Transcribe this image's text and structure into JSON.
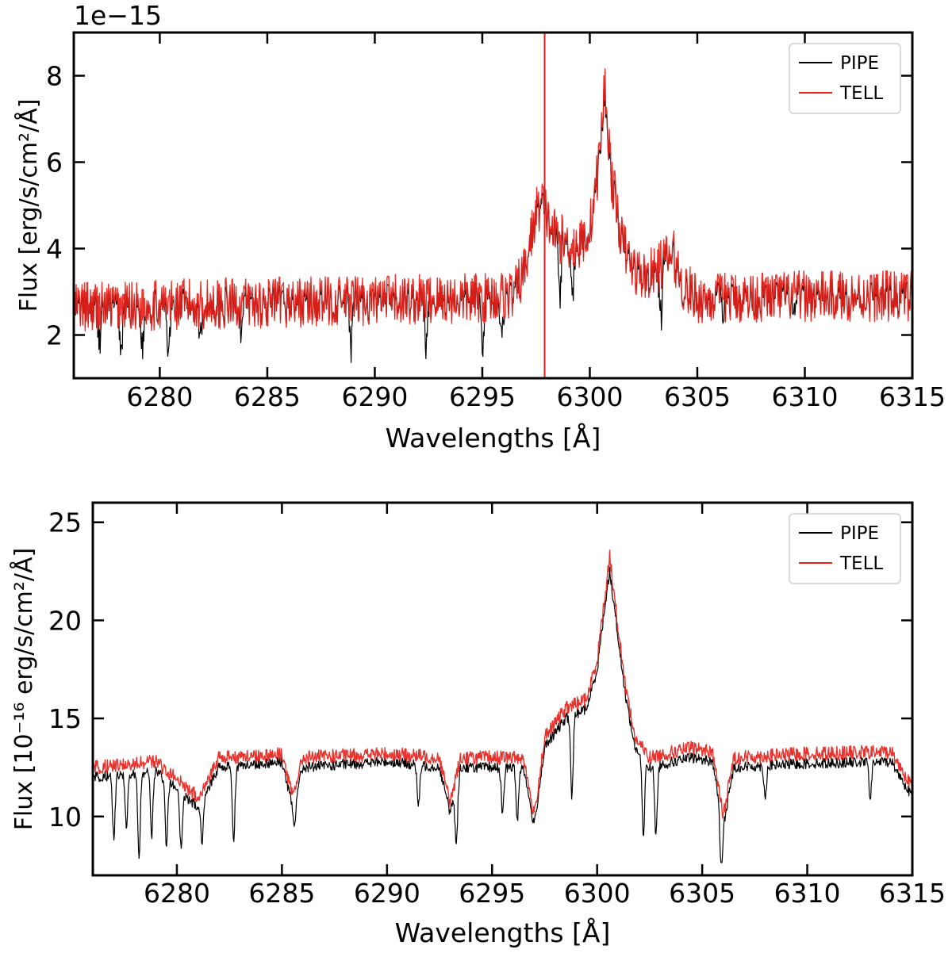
{
  "chart_data": [
    {
      "type": "line",
      "title": "",
      "offset_label": "1e−15",
      "xlabel": "Wavelengths [Å]",
      "ylabel": "Flux [erg/s/cm²/Å]",
      "xlim": [
        6276,
        6315
      ],
      "ylim": [
        1.0,
        9.0
      ],
      "xticks": [
        6280,
        6285,
        6290,
        6295,
        6300,
        6305,
        6310,
        6315
      ],
      "yticks": [
        2,
        4,
        6,
        8
      ],
      "grid": false,
      "legend_position": "top-right",
      "vline": {
        "x": 6297.9,
        "color": "#d62020"
      },
      "series": [
        {
          "name": "PIPE",
          "color": "#000000",
          "x": [
            6276,
            6280,
            6285,
            6290,
            6295,
            6296.5,
            6297,
            6297.5,
            6297.8,
            6298.2,
            6298.8,
            6299.5,
            6300.0,
            6300.4,
            6300.7,
            6301.0,
            6301.5,
            6302.0,
            6302.5,
            6303.0,
            6303.5,
            6303.9,
            6304.3,
            6305,
            6310,
            6315
          ],
          "values": [
            2.6,
            2.65,
            2.7,
            2.75,
            2.8,
            2.9,
            3.5,
            4.8,
            5.0,
            4.4,
            4.1,
            4.0,
            4.4,
            5.8,
            7.6,
            5.6,
            4.1,
            3.5,
            3.3,
            3.4,
            3.7,
            3.8,
            3.1,
            2.8,
            2.85,
            2.85
          ],
          "absorption_dips": [
            [
              6277.2,
              1.9
            ],
            [
              6278.2,
              1.6
            ],
            [
              6279.2,
              1.7
            ],
            [
              6280.4,
              1.5
            ],
            [
              6281.9,
              1.9
            ],
            [
              6283.8,
              2.1
            ],
            [
              6288.9,
              1.7
            ],
            [
              6292.4,
              1.7
            ],
            [
              6295.0,
              1.8
            ],
            [
              6295.9,
              1.8
            ],
            [
              6298.6,
              3.0
            ],
            [
              6299.2,
              3.0
            ],
            [
              6303.3,
              2.4
            ],
            [
              6306.2,
              2.3
            ],
            [
              6309.5,
              2.3
            ]
          ]
        },
        {
          "name": "TELL",
          "color": "#e8211b",
          "x": [
            6276,
            6280,
            6285,
            6290,
            6295,
            6296.5,
            6297,
            6297.5,
            6297.8,
            6298.2,
            6298.8,
            6299.5,
            6300.0,
            6300.4,
            6300.7,
            6301.0,
            6301.5,
            6302.0,
            6302.5,
            6303.0,
            6303.5,
            6303.9,
            6304.3,
            6305,
            6310,
            6315
          ],
          "values": [
            2.65,
            2.7,
            2.75,
            2.8,
            2.85,
            2.95,
            3.55,
            4.85,
            5.1,
            4.45,
            4.15,
            4.05,
            4.45,
            5.9,
            7.8,
            5.7,
            4.15,
            3.55,
            3.35,
            3.45,
            3.75,
            3.85,
            3.15,
            2.85,
            2.9,
            2.9
          ],
          "absorption_dips": []
        }
      ]
    },
    {
      "type": "line",
      "title": "",
      "xlabel": "Wavelengths [Å]",
      "ylabel": "Flux [10⁻¹⁶ erg/s/cm²/Å]",
      "xlim": [
        6276,
        6315
      ],
      "ylim": [
        7.0,
        26.0
      ],
      "xticks": [
        6280,
        6285,
        6290,
        6295,
        6300,
        6305,
        6310,
        6315
      ],
      "yticks": [
        10,
        15,
        20,
        25
      ],
      "grid": false,
      "legend_position": "top-right",
      "series": [
        {
          "name": "PIPE",
          "color": "#000000",
          "x": [
            6276,
            6279,
            6281,
            6282,
            6285,
            6285.5,
            6286,
            6290,
            6292.5,
            6293,
            6293.5,
            6296.5,
            6297,
            6297.5,
            6298.5,
            6299.5,
            6300.0,
            6300.4,
            6300.6,
            6300.9,
            6301.3,
            6301.8,
            6302.5,
            6304.5,
            6305.5,
            6306,
            6306.5,
            6310,
            6314,
            6315
          ],
          "values": [
            12.0,
            12.3,
            10.5,
            12.5,
            12.8,
            10.5,
            12.5,
            12.8,
            12.5,
            10.2,
            12.5,
            12.5,
            9.5,
            13.5,
            15.0,
            15.5,
            17.5,
            21.0,
            22.5,
            20.0,
            16.5,
            13.5,
            12.5,
            13.0,
            12.8,
            9.5,
            12.5,
            12.7,
            12.8,
            11.0
          ],
          "absorption_dips": [
            [
              6277.0,
              8.9
            ],
            [
              6277.6,
              9.5
            ],
            [
              6278.2,
              8.0
            ],
            [
              6278.8,
              9.0
            ],
            [
              6279.5,
              8.6
            ],
            [
              6280.2,
              8.3
            ],
            [
              6281.2,
              8.8
            ],
            [
              6282.7,
              8.7
            ],
            [
              6285.6,
              9.5
            ],
            [
              6291.5,
              10.5
            ],
            [
              6293.3,
              8.5
            ],
            [
              6295.5,
              10.0
            ],
            [
              6296.2,
              9.8
            ],
            [
              6298.8,
              11.0
            ],
            [
              6302.2,
              9.0
            ],
            [
              6302.8,
              9.0
            ],
            [
              6305.9,
              7.4
            ],
            [
              6308.0,
              11.0
            ],
            [
              6313.0,
              11.0
            ]
          ]
        },
        {
          "name": "TELL",
          "color": "#e8211b",
          "x": [
            6276,
            6279,
            6281,
            6282,
            6285,
            6285.5,
            6286,
            6290,
            6292.5,
            6293,
            6293.5,
            6296.5,
            6297,
            6297.5,
            6298.5,
            6299.5,
            6300.0,
            6300.4,
            6300.6,
            6300.9,
            6301.3,
            6301.8,
            6302.5,
            6304.5,
            6305.5,
            6306,
            6306.5,
            6310,
            6314,
            6315
          ],
          "values": [
            12.5,
            12.8,
            11.0,
            13.0,
            13.2,
            11.0,
            13.0,
            13.2,
            13.0,
            10.7,
            13.0,
            13.0,
            10.0,
            14.0,
            15.5,
            16.0,
            18.0,
            21.5,
            23.3,
            20.5,
            17.0,
            14.0,
            13.0,
            13.5,
            13.3,
            10.0,
            13.0,
            13.2,
            13.3,
            11.5
          ],
          "absorption_dips": []
        }
      ]
    }
  ]
}
